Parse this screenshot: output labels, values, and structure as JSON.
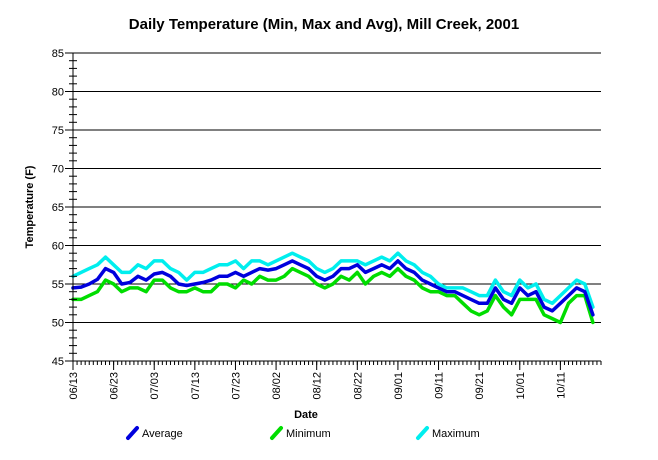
{
  "chart_data": {
    "type": "line",
    "title": "Daily Temperature (Min, Max and Avg), Mill Creek, 2001",
    "xlabel": "Date",
    "ylabel": "Temperature (F)",
    "ylim": [
      45,
      85
    ],
    "yticks": [
      45,
      50,
      55,
      60,
      65,
      70,
      75,
      80,
      85
    ],
    "xlim": [
      "2001-06-13",
      "2001-10-21"
    ],
    "xtick_labels": [
      "06/13",
      "06/23",
      "07/03",
      "07/13",
      "07/23",
      "08/02",
      "08/12",
      "08/22",
      "09/01",
      "09/11",
      "09/21",
      "10/01",
      "10/11"
    ],
    "grid": true,
    "legend_position": "bottom",
    "series": [
      {
        "name": "Average",
        "color": "#0000dd",
        "points": [
          [
            "2001-06-13",
            54.5
          ],
          [
            "2001-06-15",
            54.6
          ],
          [
            "2001-06-17",
            55.0
          ],
          [
            "2001-06-19",
            55.6
          ],
          [
            "2001-06-21",
            57.0
          ],
          [
            "2001-06-23",
            56.5
          ],
          [
            "2001-06-25",
            55.0
          ],
          [
            "2001-06-27",
            55.2
          ],
          [
            "2001-06-29",
            56.0
          ],
          [
            "2001-07-01",
            55.5
          ],
          [
            "2001-07-03",
            56.3
          ],
          [
            "2001-07-05",
            56.5
          ],
          [
            "2001-07-07",
            56.0
          ],
          [
            "2001-07-09",
            55.0
          ],
          [
            "2001-07-11",
            54.8
          ],
          [
            "2001-07-13",
            55.0
          ],
          [
            "2001-07-15",
            55.2
          ],
          [
            "2001-07-17",
            55.5
          ],
          [
            "2001-07-19",
            56.0
          ],
          [
            "2001-07-21",
            56.0
          ],
          [
            "2001-07-23",
            56.5
          ],
          [
            "2001-07-25",
            56.0
          ],
          [
            "2001-07-27",
            56.5
          ],
          [
            "2001-07-29",
            57.0
          ],
          [
            "2001-07-31",
            56.8
          ],
          [
            "2001-08-02",
            57.0
          ],
          [
            "2001-08-04",
            57.5
          ],
          [
            "2001-08-06",
            58.0
          ],
          [
            "2001-08-08",
            57.5
          ],
          [
            "2001-08-10",
            57.0
          ],
          [
            "2001-08-12",
            56.0
          ],
          [
            "2001-08-14",
            55.5
          ],
          [
            "2001-08-16",
            56.0
          ],
          [
            "2001-08-18",
            57.0
          ],
          [
            "2001-08-20",
            57.0
          ],
          [
            "2001-08-22",
            57.5
          ],
          [
            "2001-08-24",
            56.5
          ],
          [
            "2001-08-26",
            57.0
          ],
          [
            "2001-08-28",
            57.5
          ],
          [
            "2001-08-30",
            57.0
          ],
          [
            "2001-09-01",
            58.0
          ],
          [
            "2001-09-03",
            57.0
          ],
          [
            "2001-09-05",
            56.5
          ],
          [
            "2001-09-07",
            55.5
          ],
          [
            "2001-09-09",
            55.0
          ],
          [
            "2001-09-11",
            54.5
          ],
          [
            "2001-09-13",
            54.0
          ],
          [
            "2001-09-15",
            54.0
          ],
          [
            "2001-09-17",
            53.5
          ],
          [
            "2001-09-19",
            53.0
          ],
          [
            "2001-09-21",
            52.5
          ],
          [
            "2001-09-23",
            52.5
          ],
          [
            "2001-09-25",
            54.5
          ],
          [
            "2001-09-27",
            53.0
          ],
          [
            "2001-09-29",
            52.5
          ],
          [
            "2001-10-01",
            54.5
          ],
          [
            "2001-10-03",
            53.5
          ],
          [
            "2001-10-05",
            54.0
          ],
          [
            "2001-10-07",
            52.0
          ],
          [
            "2001-10-09",
            51.5
          ],
          [
            "2001-10-11",
            52.5
          ],
          [
            "2001-10-13",
            53.5
          ],
          [
            "2001-10-15",
            54.5
          ],
          [
            "2001-10-17",
            54.0
          ],
          [
            "2001-10-19",
            51.0
          ]
        ]
      },
      {
        "name": "Minimum",
        "color": "#00dd00",
        "points": [
          [
            "2001-06-13",
            53.0
          ],
          [
            "2001-06-15",
            53.0
          ],
          [
            "2001-06-17",
            53.5
          ],
          [
            "2001-06-19",
            54.0
          ],
          [
            "2001-06-21",
            55.5
          ],
          [
            "2001-06-23",
            55.0
          ],
          [
            "2001-06-25",
            54.0
          ],
          [
            "2001-06-27",
            54.5
          ],
          [
            "2001-06-29",
            54.5
          ],
          [
            "2001-07-01",
            54.0
          ],
          [
            "2001-07-03",
            55.5
          ],
          [
            "2001-07-05",
            55.5
          ],
          [
            "2001-07-07",
            54.5
          ],
          [
            "2001-07-09",
            54.0
          ],
          [
            "2001-07-11",
            54.0
          ],
          [
            "2001-07-13",
            54.5
          ],
          [
            "2001-07-15",
            54.0
          ],
          [
            "2001-07-17",
            54.0
          ],
          [
            "2001-07-19",
            55.0
          ],
          [
            "2001-07-21",
            55.0
          ],
          [
            "2001-07-23",
            54.5
          ],
          [
            "2001-07-25",
            55.5
          ],
          [
            "2001-07-27",
            55.0
          ],
          [
            "2001-07-29",
            56.0
          ],
          [
            "2001-07-31",
            55.5
          ],
          [
            "2001-08-02",
            55.5
          ],
          [
            "2001-08-04",
            56.0
          ],
          [
            "2001-08-06",
            57.0
          ],
          [
            "2001-08-08",
            56.5
          ],
          [
            "2001-08-10",
            56.0
          ],
          [
            "2001-08-12",
            55.0
          ],
          [
            "2001-08-14",
            54.5
          ],
          [
            "2001-08-16",
            55.0
          ],
          [
            "2001-08-18",
            56.0
          ],
          [
            "2001-08-20",
            55.5
          ],
          [
            "2001-08-22",
            56.5
          ],
          [
            "2001-08-24",
            55.0
          ],
          [
            "2001-08-26",
            56.0
          ],
          [
            "2001-08-28",
            56.5
          ],
          [
            "2001-08-30",
            56.0
          ],
          [
            "2001-09-01",
            57.0
          ],
          [
            "2001-09-03",
            56.0
          ],
          [
            "2001-09-05",
            55.5
          ],
          [
            "2001-09-07",
            54.5
          ],
          [
            "2001-09-09",
            54.0
          ],
          [
            "2001-09-11",
            54.0
          ],
          [
            "2001-09-13",
            53.5
          ],
          [
            "2001-09-15",
            53.5
          ],
          [
            "2001-09-17",
            52.5
          ],
          [
            "2001-09-19",
            51.5
          ],
          [
            "2001-09-21",
            51.0
          ],
          [
            "2001-09-23",
            51.5
          ],
          [
            "2001-09-25",
            53.5
          ],
          [
            "2001-09-27",
            52.0
          ],
          [
            "2001-09-29",
            51.0
          ],
          [
            "2001-10-01",
            53.0
          ],
          [
            "2001-10-03",
            53.0
          ],
          [
            "2001-10-05",
            53.0
          ],
          [
            "2001-10-07",
            51.0
          ],
          [
            "2001-10-09",
            50.5
          ],
          [
            "2001-10-11",
            50.0
          ],
          [
            "2001-10-13",
            52.5
          ],
          [
            "2001-10-15",
            53.5
          ],
          [
            "2001-10-17",
            53.5
          ],
          [
            "2001-10-19",
            50.0
          ]
        ]
      },
      {
        "name": "Maximum",
        "color": "#00eeee",
        "points": [
          [
            "2001-06-13",
            56.0
          ],
          [
            "2001-06-15",
            56.5
          ],
          [
            "2001-06-17",
            57.0
          ],
          [
            "2001-06-19",
            57.5
          ],
          [
            "2001-06-21",
            58.5
          ],
          [
            "2001-06-23",
            57.5
          ],
          [
            "2001-06-25",
            56.5
          ],
          [
            "2001-06-27",
            56.5
          ],
          [
            "2001-06-29",
            57.5
          ],
          [
            "2001-07-01",
            57.0
          ],
          [
            "2001-07-03",
            58.0
          ],
          [
            "2001-07-05",
            58.0
          ],
          [
            "2001-07-07",
            57.0
          ],
          [
            "2001-07-09",
            56.5
          ],
          [
            "2001-07-11",
            55.5
          ],
          [
            "2001-07-13",
            56.5
          ],
          [
            "2001-07-15",
            56.5
          ],
          [
            "2001-07-17",
            57.0
          ],
          [
            "2001-07-19",
            57.5
          ],
          [
            "2001-07-21",
            57.5
          ],
          [
            "2001-07-23",
            58.0
          ],
          [
            "2001-07-25",
            57.0
          ],
          [
            "2001-07-27",
            58.0
          ],
          [
            "2001-07-29",
            58.0
          ],
          [
            "2001-07-31",
            57.5
          ],
          [
            "2001-08-02",
            58.0
          ],
          [
            "2001-08-04",
            58.5
          ],
          [
            "2001-08-06",
            59.0
          ],
          [
            "2001-08-08",
            58.5
          ],
          [
            "2001-08-10",
            58.0
          ],
          [
            "2001-08-12",
            57.0
          ],
          [
            "2001-08-14",
            56.5
          ],
          [
            "2001-08-16",
            57.0
          ],
          [
            "2001-08-18",
            58.0
          ],
          [
            "2001-08-20",
            58.0
          ],
          [
            "2001-08-22",
            58.0
          ],
          [
            "2001-08-24",
            57.5
          ],
          [
            "2001-08-26",
            58.0
          ],
          [
            "2001-08-28",
            58.5
          ],
          [
            "2001-08-30",
            58.0
          ],
          [
            "2001-09-01",
            59.0
          ],
          [
            "2001-09-03",
            58.0
          ],
          [
            "2001-09-05",
            57.5
          ],
          [
            "2001-09-07",
            56.5
          ],
          [
            "2001-09-09",
            56.0
          ],
          [
            "2001-09-11",
            55.0
          ],
          [
            "2001-09-13",
            54.5
          ],
          [
            "2001-09-15",
            54.5
          ],
          [
            "2001-09-17",
            54.5
          ],
          [
            "2001-09-19",
            54.0
          ],
          [
            "2001-09-21",
            53.5
          ],
          [
            "2001-09-23",
            53.5
          ],
          [
            "2001-09-25",
            55.5
          ],
          [
            "2001-09-27",
            54.0
          ],
          [
            "2001-09-29",
            53.5
          ],
          [
            "2001-10-01",
            55.5
          ],
          [
            "2001-10-03",
            54.5
          ],
          [
            "2001-10-05",
            55.0
          ],
          [
            "2001-10-07",
            53.0
          ],
          [
            "2001-10-09",
            52.5
          ],
          [
            "2001-10-11",
            53.5
          ],
          [
            "2001-10-13",
            54.5
          ],
          [
            "2001-10-15",
            55.5
          ],
          [
            "2001-10-17",
            55.0
          ],
          [
            "2001-10-19",
            52.0
          ]
        ]
      }
    ]
  }
}
